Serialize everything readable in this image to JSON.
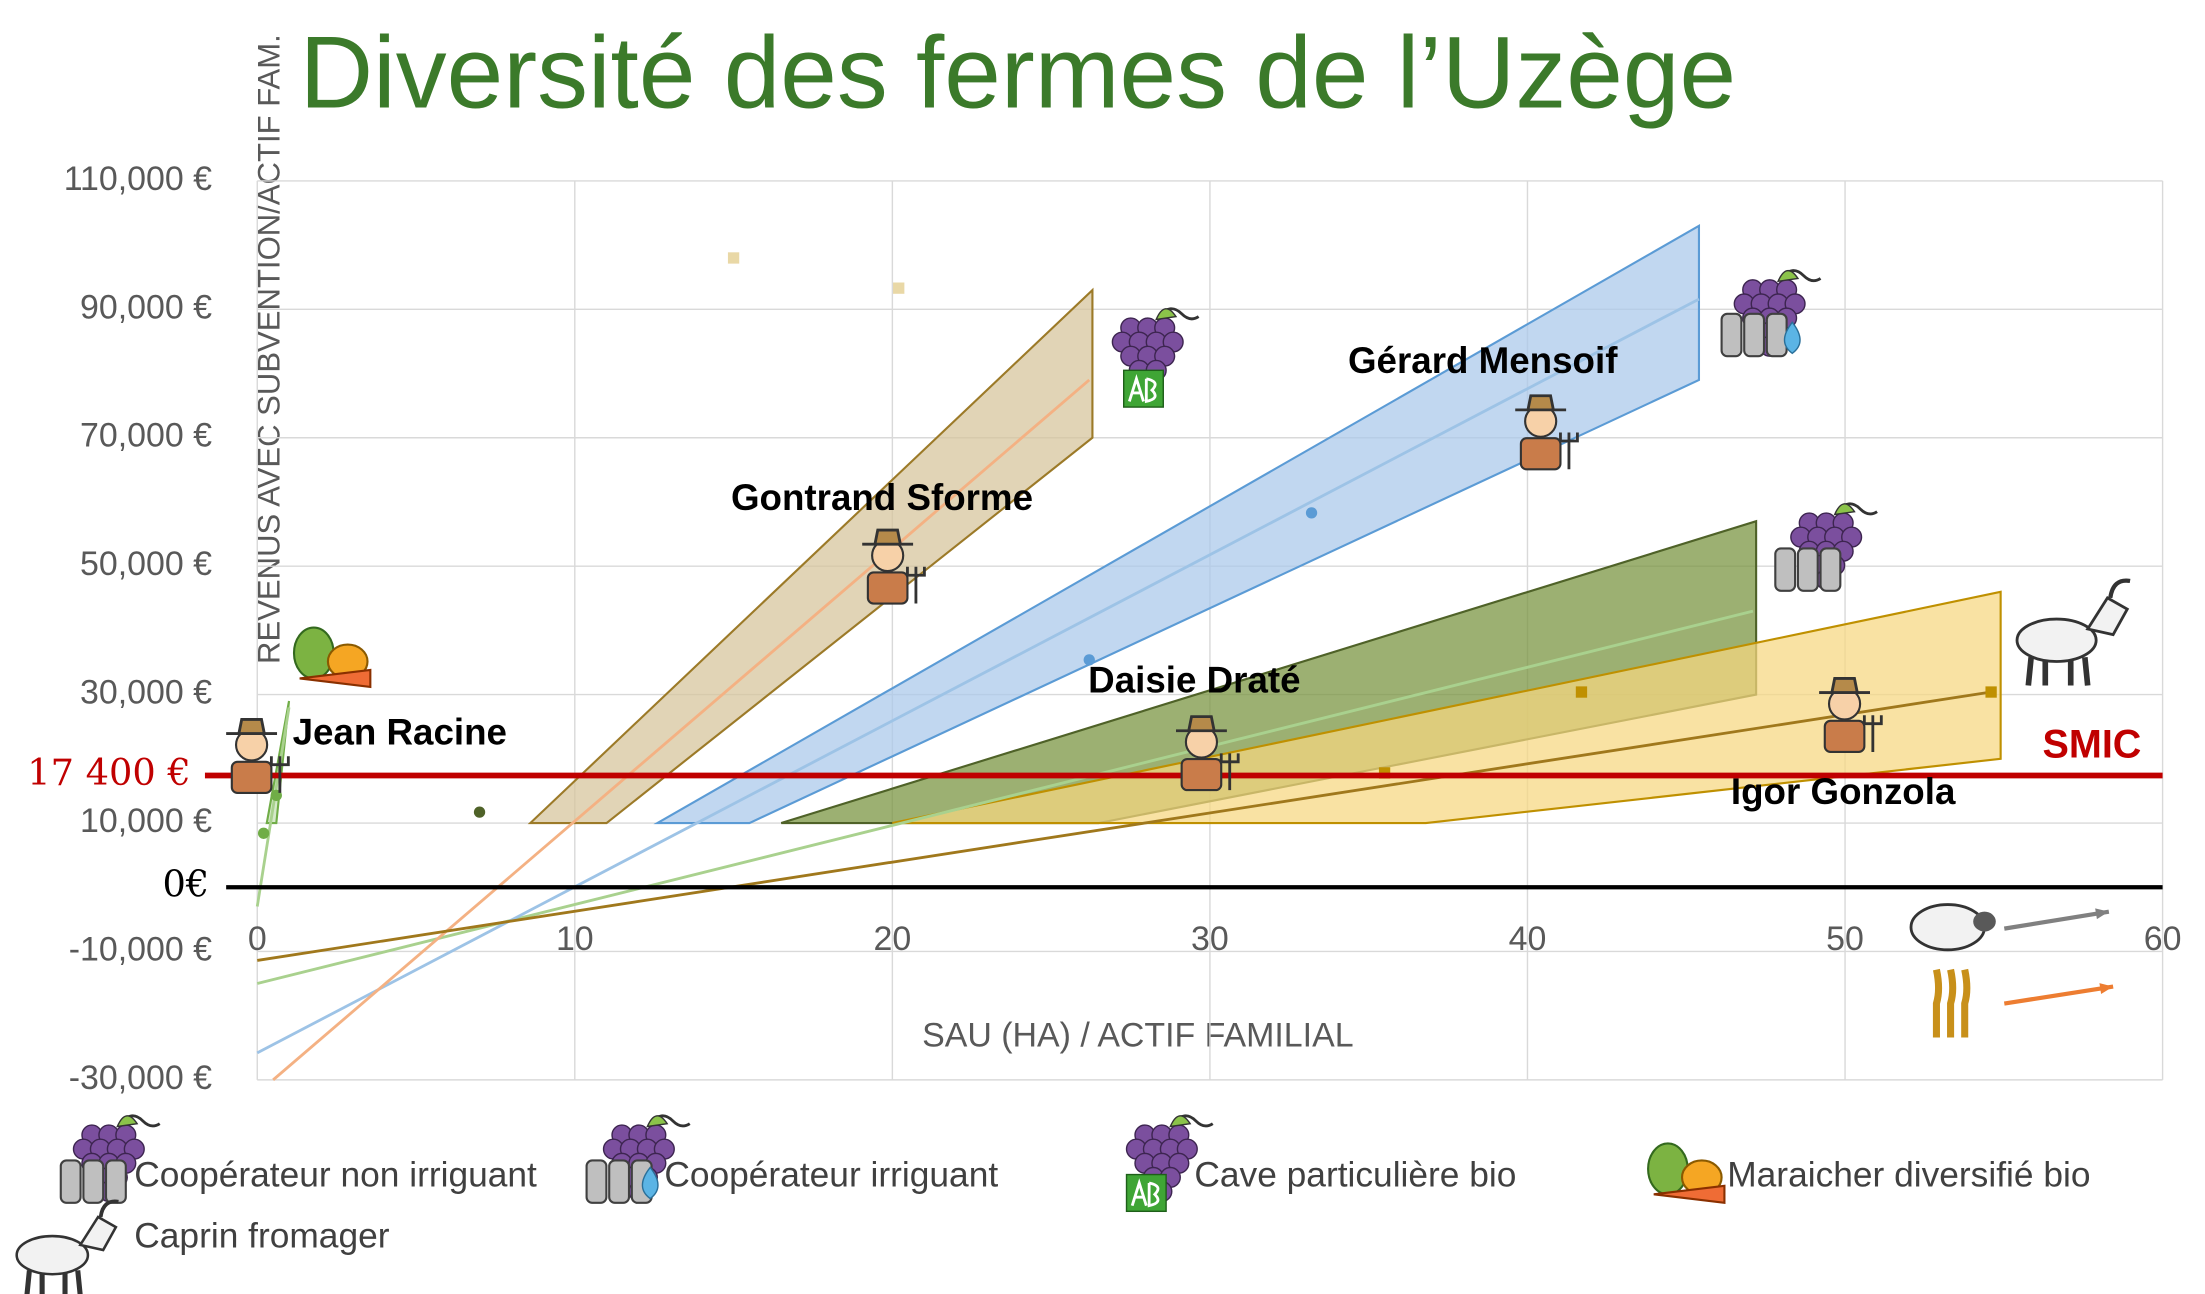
{
  "chart_data": {
    "type": "scatter",
    "title": "Diversité des fermes de l’Uzège",
    "y_label": "REVENUS AVEC SUBVENTION/ACTIF FAM.",
    "x_label": "SAU (HA) / ACTIF FAMILIAL",
    "title_color": "#3b7a2a",
    "xlim": [
      0,
      60
    ],
    "xticks": [
      0,
      10,
      20,
      30,
      40,
      50,
      60
    ],
    "ylim": [
      -30000,
      110000
    ],
    "yticks": [
      {
        "value": -30000,
        "label": "-30,000 €"
      },
      {
        "value": -10000,
        "label": "-10,000 €"
      },
      {
        "value": 10000,
        "label": "10,000 €"
      },
      {
        "value": 30000,
        "label": "30,000 €"
      },
      {
        "value": 50000,
        "label": "50,000 €"
      },
      {
        "value": 70000,
        "label": "70,000 €"
      },
      {
        "value": 90000,
        "label": "90,000 €"
      },
      {
        "value": 110000,
        "label": "110,000 €"
      }
    ],
    "grid": true,
    "reference_lines": [
      {
        "value": 17400,
        "label": "17 400 €",
        "name": "SMIC",
        "color": "#c00000"
      },
      {
        "value": 0,
        "label": "0€",
        "color": "#000000"
      }
    ],
    "series": [
      {
        "name": "Coopérateur non irriguant",
        "color": "#4f6228",
        "band_color": "#76923c",
        "line_color": "#a9d18e",
        "band": {
          "x": [
            16.5,
            26.5,
            47.2,
            47.2
          ],
          "y": [
            10000,
            10000,
            30000,
            57000
          ]
        },
        "line": {
          "x": [
            0,
            47.1
          ],
          "y": [
            -15000,
            43000
          ]
        },
        "points": {
          "x": [
            7
          ],
          "y": [
            11700
          ]
        }
      },
      {
        "name": "Coopérateur irriguant",
        "color": "#5b9bd5",
        "band_color": "#a9c8ea",
        "line_color": "#9dc3e6",
        "band": {
          "x": [
            12.6,
            15.5,
            45.4,
            45.4
          ],
          "y": [
            10000,
            10000,
            79000,
            103000
          ]
        },
        "line": {
          "x": [
            0,
            45.4
          ],
          "y": [
            -25800,
            91600
          ]
        },
        "points": {
          "x": [
            33.2,
            26.2
          ],
          "y": [
            58300,
            35400
          ]
        }
      },
      {
        "name": "Cave particulière bio",
        "color": "#9c7a28",
        "band_color": "#d6c49a",
        "line_color": "#f4b183",
        "band": {
          "x": [
            8.6,
            11.0,
            26.3,
            26.3
          ],
          "y": [
            10000,
            10000,
            70000,
            93000
          ]
        },
        "line": {
          "x": [
            0.5,
            26.2
          ],
          "y": [
            -30000,
            79000
          ]
        }
      },
      {
        "name": "Maraicher diversifié bio",
        "color": "#70ad47",
        "band_color": "#c5e0b4",
        "line_color": "#a9d18e",
        "band": {
          "x": [
            0.3,
            0.6,
            1.0
          ],
          "y": [
            10000,
            10000,
            29000
          ]
        },
        "line": {
          "x": [
            0,
            1.0
          ],
          "y": [
            -3000,
            28000
          ]
        },
        "points": {
          "x": [
            0.2,
            0.6
          ],
          "y": [
            8400,
            14300
          ]
        }
      },
      {
        "name": "Caprin fromager",
        "color": "#bf9000",
        "band_color": "#f6d77f",
        "line_color": "#a0781c",
        "band": {
          "x": [
            20,
            36.8,
            54.9,
            54.9
          ],
          "y": [
            10000,
            10000,
            20000,
            46000
          ]
        },
        "line": {
          "x": [
            0,
            54.6
          ],
          "y": [
            -11400,
            30400
          ]
        },
        "points": {
          "x": [
            41.7,
            35.5,
            54.6,
            15,
            20.2
          ],
          "y": [
            30400,
            17800,
            30400,
            98000,
            93300
          ]
        }
      }
    ],
    "annotations": [
      "Jean Racine",
      "Gontrand Sforme",
      "Gérard Mensoif",
      "Daisie Draté",
      "Igor Gonzola"
    ]
  }
}
